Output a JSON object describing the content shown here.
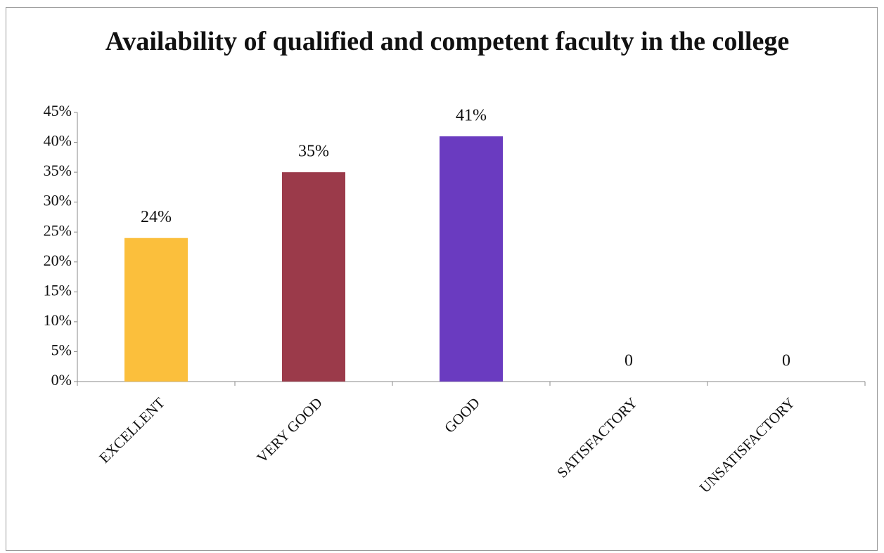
{
  "chart_data": {
    "type": "bar",
    "title": "Availability of qualified and competent faculty in the college",
    "categories": [
      "EXCELLENT",
      "VERY GOOD",
      "GOOD",
      "SATISFACTORY",
      "UNSATISFACTORY"
    ],
    "values": [
      24,
      35,
      41,
      0,
      0
    ],
    "value_labels": [
      "24%",
      "35%",
      "41%",
      "0",
      "0"
    ],
    "colors": [
      "#fbbf3c",
      "#9b3a4a",
      "#6a3bc0",
      null,
      null
    ],
    "ylim": [
      0,
      45
    ],
    "yticks": [
      {
        "value": 0,
        "label": "0%"
      },
      {
        "value": 5,
        "label": "5%"
      },
      {
        "value": 10,
        "label": "10%"
      },
      {
        "value": 15,
        "label": "15%"
      },
      {
        "value": 20,
        "label": "20%"
      },
      {
        "value": 25,
        "label": "25%"
      },
      {
        "value": 30,
        "label": "30%"
      },
      {
        "value": 35,
        "label": "35%"
      },
      {
        "value": 40,
        "label": "40%"
      },
      {
        "value": 45,
        "label": "45%"
      }
    ],
    "grid": false
  }
}
